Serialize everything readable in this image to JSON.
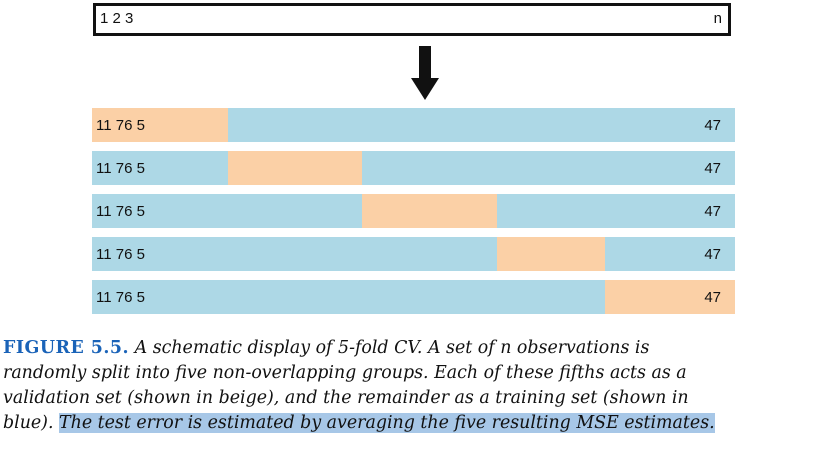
{
  "top_box": {
    "left_label": "1 2 3",
    "right_label": "n"
  },
  "folds": [
    {
      "left_label": "11 76 5",
      "right_label": "47",
      "validation_fold": 1
    },
    {
      "left_label": "11 76 5",
      "right_label": "47",
      "validation_fold": 2
    },
    {
      "left_label": "11 76 5",
      "right_label": "47",
      "validation_fold": 3
    },
    {
      "left_label": "11 76 5",
      "right_label": "47",
      "validation_fold": 4
    },
    {
      "left_label": "11 76 5",
      "right_label": "47",
      "validation_fold": 5
    }
  ],
  "num_folds": 5,
  "colors": {
    "training": "#add8e6",
    "validation": "#fbd0a6",
    "caption_label": "#1a63b8",
    "highlight": "#a7c7e7"
  },
  "caption": {
    "label": "FIGURE 5.5.",
    "line1": "A schematic display of 5-fold CV. A set of n observations is",
    "line2": "randomly split into five non-overlapping groups. Each of these fifths acts as a",
    "line3": "validation set (shown in beige), and the remainder as a training set (shown in",
    "line4_plain": "blue). ",
    "line4_highlight": "The test error is estimated by averaging the five resulting MSE estimates."
  }
}
